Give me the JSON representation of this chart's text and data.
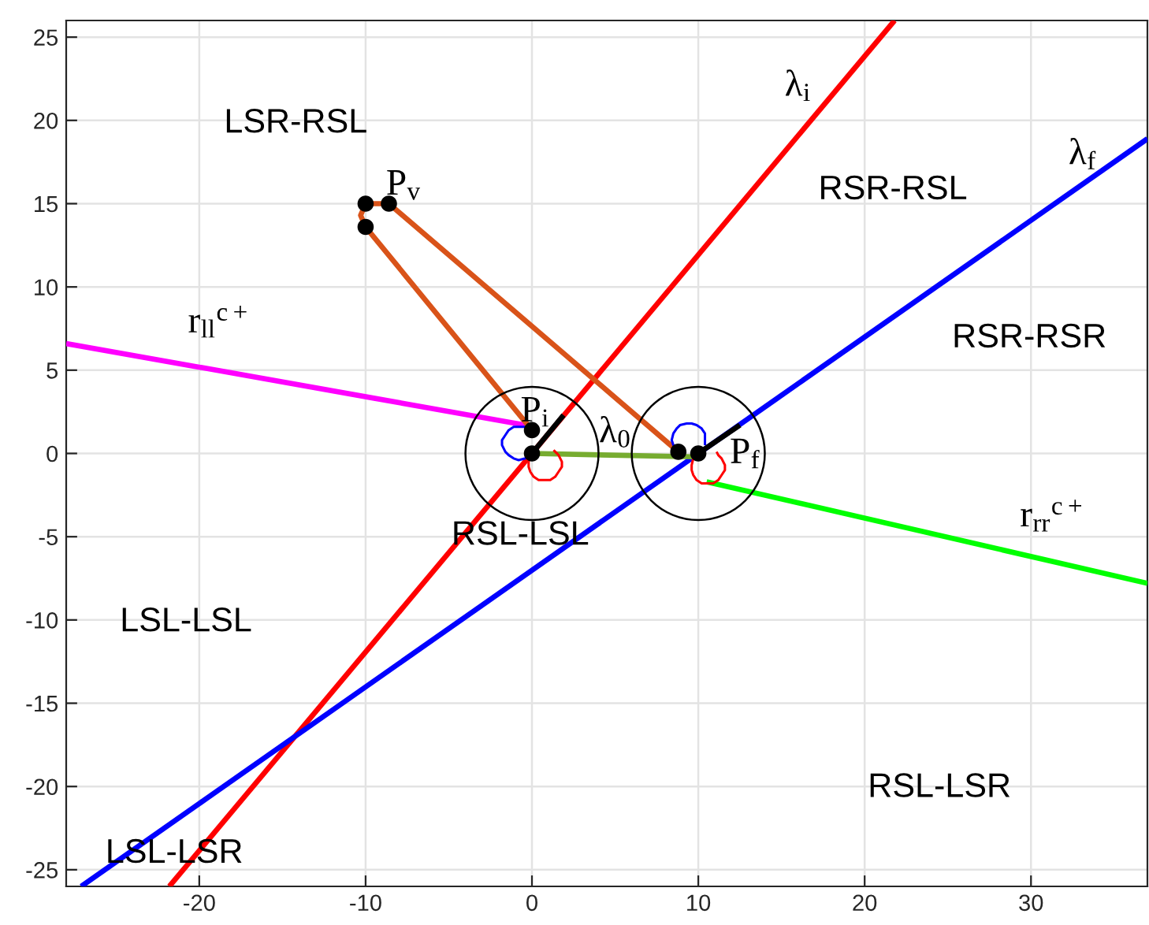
{
  "chart_data": {
    "type": "line",
    "xlim": [
      -28,
      37
    ],
    "ylim": [
      -26,
      26
    ],
    "xticks": [
      -20,
      -10,
      0,
      10,
      20,
      30
    ],
    "yticks": [
      -25,
      -20,
      -15,
      -10,
      -5,
      0,
      5,
      10,
      15,
      20,
      25
    ],
    "grid": true,
    "series": [
      {
        "color": "#ff0000",
        "x": [
          -21.8,
          21.8
        ],
        "values": [
          -26,
          26
        ]
      },
      {
        "color": "#0000ff",
        "x": [
          -27.1,
          37
        ],
        "values": [
          -26,
          18.9
        ]
      },
      {
        "color": "#ff00ff",
        "x": [
          -28,
          -0.4
        ],
        "values": [
          6.6,
          1.7
        ]
      },
      {
        "color": "#00ff00",
        "x": [
          10.5,
          37
        ],
        "values": [
          -1.7,
          -7.8
        ]
      },
      {
        "color": "#d95319",
        "x": [
          8.8,
          -8.6,
          -10,
          -10.3,
          -10,
          0
        ],
        "values": [
          0.1,
          15,
          15,
          14.3,
          13.6,
          1.4
        ]
      },
      {
        "color": "#77ac30",
        "x": [
          0,
          9.7
        ],
        "values": [
          0,
          -0.2
        ]
      },
      {
        "color": "#0000ff",
        "x": [
          -0.4,
          -0.8,
          -1.1,
          -1.4,
          -1.6,
          -1.8,
          -1.8,
          -1.6,
          -1.4,
          -1.1,
          -0.8,
          -0.4,
          -0.1
        ],
        "values": [
          1.6,
          1.6,
          1.6,
          1.4,
          1.1,
          0.8,
          0.5,
          0.1,
          -0.1,
          -0.3,
          -0.4,
          -0.3,
          -0.1
        ]
      },
      {
        "color": "#ff0000",
        "x": [
          -0.1,
          -0.2,
          -0.2,
          -0.1,
          0.1,
          0.4,
          0.8,
          1.1,
          1.4,
          1.6,
          1.8,
          1.8,
          1.6,
          1.4,
          1.3
        ],
        "values": [
          -0.1,
          -0.5,
          -0.8,
          -1.1,
          -1.4,
          -1.6,
          -1.6,
          -1.6,
          -1.4,
          -1.1,
          -0.8,
          -0.5,
          -0.1,
          0.1,
          0.2
        ]
      },
      {
        "color": "#0000ff",
        "x": [
          10.4,
          10.4,
          10.4,
          10.2,
          9.9,
          9.6,
          9.3,
          8.9,
          8.7,
          8.5,
          8.4,
          8.5,
          8.7
        ],
        "values": [
          0.5,
          0.8,
          1.2,
          1.5,
          1.7,
          1.8,
          1.8,
          1.7,
          1.5,
          1.2,
          0.8,
          0.5,
          0.2
        ]
      },
      {
        "color": "#ff0000",
        "x": [
          9.7,
          9.6,
          9.6,
          9.7,
          9.9,
          10.2,
          10.6,
          10.9,
          11.2,
          11.4,
          11.6,
          11.6,
          11.4,
          11.2,
          11.1
        ],
        "values": [
          -0.3,
          -0.7,
          -1.0,
          -1.3,
          -1.6,
          -1.8,
          -1.8,
          -1.8,
          -1.6,
          -1.3,
          -1.0,
          -0.7,
          -0.3,
          -0.1,
          0.1
        ]
      },
      {
        "type": "scatter",
        "marker": "circle",
        "color": "#000000",
        "x": [
          -10,
          -8.6,
          -10,
          0,
          0,
          8.8,
          10
        ],
        "values": [
          15,
          15,
          13.6,
          1.4,
          0,
          0.1,
          0
        ]
      },
      {
        "color": "#000000",
        "x": [
          0,
          1.9
        ],
        "values": [
          0,
          2.3
        ]
      },
      {
        "color": "#000000",
        "x": [
          10,
          12.5
        ],
        "values": [
          0,
          1.7
        ]
      }
    ],
    "annotations": [
      "LSR-RSL",
      "RSR-RSL",
      "RSR-RSR",
      "RSL-LSL",
      "LSL-LSL",
      "RSL-LSR",
      "LSL-LSR",
      "λ$_{i}$",
      "λ$_{f}$",
      "λ$_{0}$",
      "P$_{v}$",
      "P$_{i}$",
      "P$_{f}$",
      "r$_{ll}$$^{c+}$",
      "r$_{rr}$$^{c+}$"
    ]
  }
}
